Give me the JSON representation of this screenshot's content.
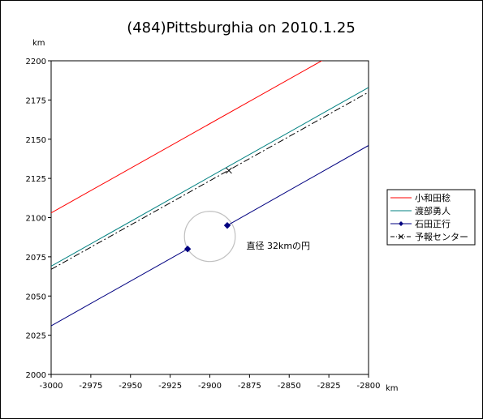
{
  "chart_data": {
    "type": "line",
    "title": "(484)Pittsburghia on 2010.1.25",
    "xlabel": "km",
    "ylabel": "km",
    "xlim": [
      -3000,
      -2800
    ],
    "ylim": [
      2000,
      2200
    ],
    "x_ticks": [
      -3000,
      -2975,
      -2950,
      -2925,
      -2900,
      -2875,
      -2850,
      -2825,
      -2800
    ],
    "y_ticks": [
      2000,
      2025,
      2050,
      2075,
      2100,
      2125,
      2150,
      2175,
      2200
    ],
    "x_tick_labels": [
      "-3000",
      "-2975",
      "-2950",
      "-2925",
      "-2900",
      "-2875",
      "-2850",
      "-2825",
      "-2800"
    ],
    "y_tick_labels": [
      "2000",
      "2025",
      "2050",
      "2075",
      "2100",
      "2125",
      "2150",
      "2175",
      "2200"
    ],
    "grid": false,
    "legend_position": "right",
    "series": [
      {
        "name": "小和田稔",
        "color": "#ff0000",
        "style": "solid",
        "points": [
          [
            -3000,
            2103
          ],
          [
            -2826,
            2202
          ]
        ]
      },
      {
        "name": "渡部勇人",
        "color": "#008080",
        "style": "solid",
        "points": [
          [
            -3000,
            2069
          ],
          [
            -2800,
            2183
          ]
        ]
      },
      {
        "name": "石田正行",
        "color": "#000080",
        "style": "solid",
        "marker": "diamond",
        "points": [
          [
            -3000,
            2031
          ],
          [
            -2800,
            2146
          ]
        ],
        "chords": [
          [
            [
              -3000,
              2031
            ],
            [
              -2914,
              2080
            ]
          ],
          [
            [
              -2889,
              2095
            ],
            [
              -2800,
              2146
            ]
          ]
        ],
        "markers": [
          [
            -2914,
            2080
          ],
          [
            -2889,
            2095
          ]
        ]
      },
      {
        "name": "予報センター",
        "color": "#000000",
        "style": "dashdot",
        "marker": "x",
        "points": [
          [
            -3000,
            2067
          ],
          [
            -2800,
            2180
          ]
        ],
        "markers": [
          [
            -2888,
            2130
          ]
        ]
      }
    ],
    "circle": {
      "center": [
        -2900,
        2088
      ],
      "radius_km": 16,
      "color": "#c0c0c0"
    },
    "annotations": [
      {
        "text": "直径 32kmの円",
        "x": -2877,
        "y": 2080
      }
    ]
  }
}
